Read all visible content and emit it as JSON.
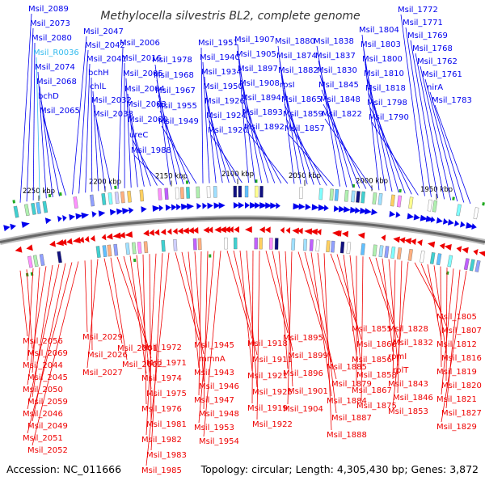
{
  "title": "Methylocella silvestris BL2, complete genome",
  "accession": "Accession: NC_011666",
  "topology": "Topology: circular; Length: 4,305,430 bp; Genes: 3,872",
  "colors": {
    "forward": "#0000ee",
    "reverse": "#ee0000",
    "rna": "#33bbee",
    "backbone": "#666666",
    "marker": "#22aa22"
  },
  "ticks": [
    "2250 kbp",
    "2200 kbp",
    "2150 kbp",
    "2100 kbp",
    "2050 kbp",
    "2000 kbp",
    "1950 kbp"
  ],
  "top_labels": [
    "Msil_2089",
    "Msil_2073",
    "Msil_2080",
    "Msil_R0036",
    "Msil_2074",
    "Msil_2068",
    "bchD",
    "Msil_2065",
    "Msil_2047",
    "Msil_2042",
    "Msil_2041",
    "bchH",
    "chlL",
    "Msil_2032",
    "Msil_2038",
    "Msil_2006",
    "Msil_2016",
    "Msil_2005",
    "Msil_2004",
    "Msil_2003",
    "Msil_2000",
    "ureC",
    "Msil_1988",
    "Msil_1978",
    "Msil_1968",
    "Msil_1967",
    "Msil_1955",
    "Msil_1949",
    "Msil_1951",
    "Msil_1940",
    "Msil_1934",
    "Msil_1950",
    "Msil_1926",
    "Msil_1924",
    "Msil_1920",
    "Msil_1907",
    "Msil_1905",
    "Msil_1897",
    "Msil_1908",
    "Msil_1894",
    "Msil_1893",
    "Msil_1892",
    "Msil_1880",
    "Msil_1874",
    "Msil_1882",
    "rpsI",
    "Msil_1865",
    "Msil_1859",
    "Msil_1857",
    "Msil_1838",
    "Msil_1837",
    "Msil_1830",
    "Msil_1845",
    "Msil_1848",
    "Msil_1822",
    "Msil_1804",
    "Msil_1803",
    "Msil_1800",
    "Msil_1810",
    "Msil_1818",
    "Msil_1798",
    "Msil_1790",
    "Msil_1772",
    "Msil_1771",
    "Msil_1769",
    "Msil_1768",
    "Msil_1762",
    "Msil_1761",
    "nirA",
    "Msil_1783"
  ],
  "bottom_labels": [
    "Msil_2056",
    "Msil_2069",
    "Msil_2044",
    "Msil_2045",
    "Msil_2050",
    "Msil_2059",
    "Msil_2046",
    "Msil_2049",
    "Msil_2051",
    "Msil_2052",
    "Msil_2029",
    "Msil_2026",
    "Msil_2027",
    "Msil_2001",
    "Msil_2002",
    "Msil_1972",
    "Msil_1971",
    "Msil_1974",
    "Msil_1975",
    "Msil_1976",
    "Msil_1981",
    "Msil_1982",
    "Msil_1983",
    "Msil_1985",
    "Msil_1945",
    "mmnA",
    "Msil_1943",
    "Msil_1946",
    "Msil_1947",
    "Msil_1948",
    "Msil_1953",
    "Msil_1954",
    "Msil_1918",
    "Msil_1911",
    "Msil_1921",
    "Msil_1925",
    "Msil_1919",
    "Msil_1922",
    "Msil_1895",
    "Msil_1899",
    "Msil_1896",
    "Msil_1901",
    "Msil_1904",
    "Msil_1885",
    "Msil_1879",
    "Msil_1884",
    "Msil_1887",
    "Msil_1888",
    "Msil_1855",
    "Msil_1866",
    "Msil_1856",
    "Msil_1858",
    "Msil_1867",
    "Msil_1875",
    "Msil_1828",
    "Msil_1832",
    "rpmI",
    "rplT",
    "Msil_1843",
    "Msil_1846",
    "Msil_1853",
    "Msil_1805",
    "Msil_1807",
    "Msil_1812",
    "Msil_1816",
    "Msil_1819",
    "Msil_1820",
    "Msil_1821",
    "Msil_1827",
    "Msil_1829"
  ]
}
